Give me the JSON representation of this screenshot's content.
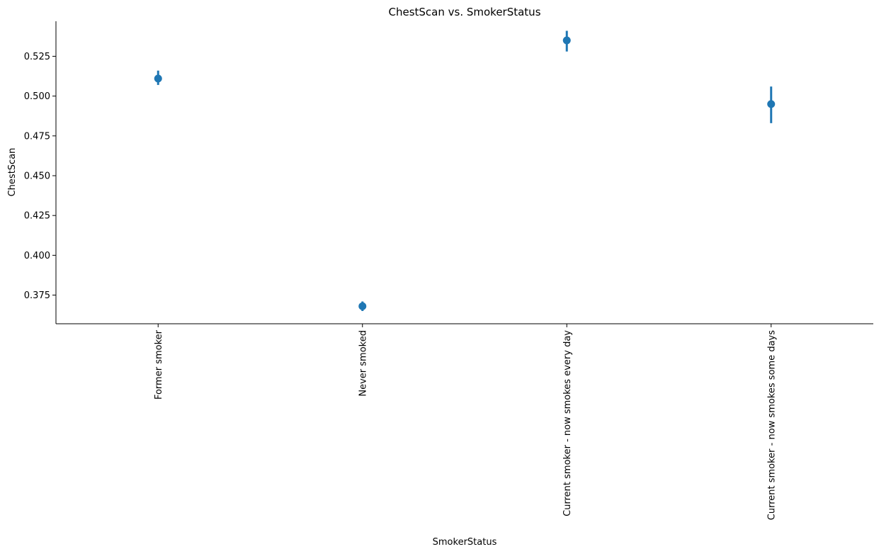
{
  "chart_data": {
    "type": "scatter",
    "subtype": "pointplot-with-error-bars",
    "title": "ChestScan vs. SmokerStatus",
    "xlabel": "SmokerStatus",
    "ylabel": "ChestScan",
    "categories": [
      "Former smoker",
      "Never smoked",
      "Current smoker - now smokes every day",
      "Current smoker - now smokes some days"
    ],
    "values": [
      0.511,
      0.368,
      0.535,
      0.495
    ],
    "ci_low": [
      0.507,
      0.365,
      0.528,
      0.483
    ],
    "ci_high": [
      0.516,
      0.371,
      0.541,
      0.506
    ],
    "ylim": [
      0.357,
      0.547
    ],
    "yticks": [
      0.375,
      0.4,
      0.425,
      0.45,
      0.475,
      0.5,
      0.525
    ],
    "ytick_labels": [
      "0.375",
      "0.400",
      "0.425",
      "0.450",
      "0.475",
      "0.500",
      "0.525"
    ],
    "x_tick_rotation": "vertical",
    "grid": false,
    "legend": "none",
    "color": "#1f77b4"
  }
}
